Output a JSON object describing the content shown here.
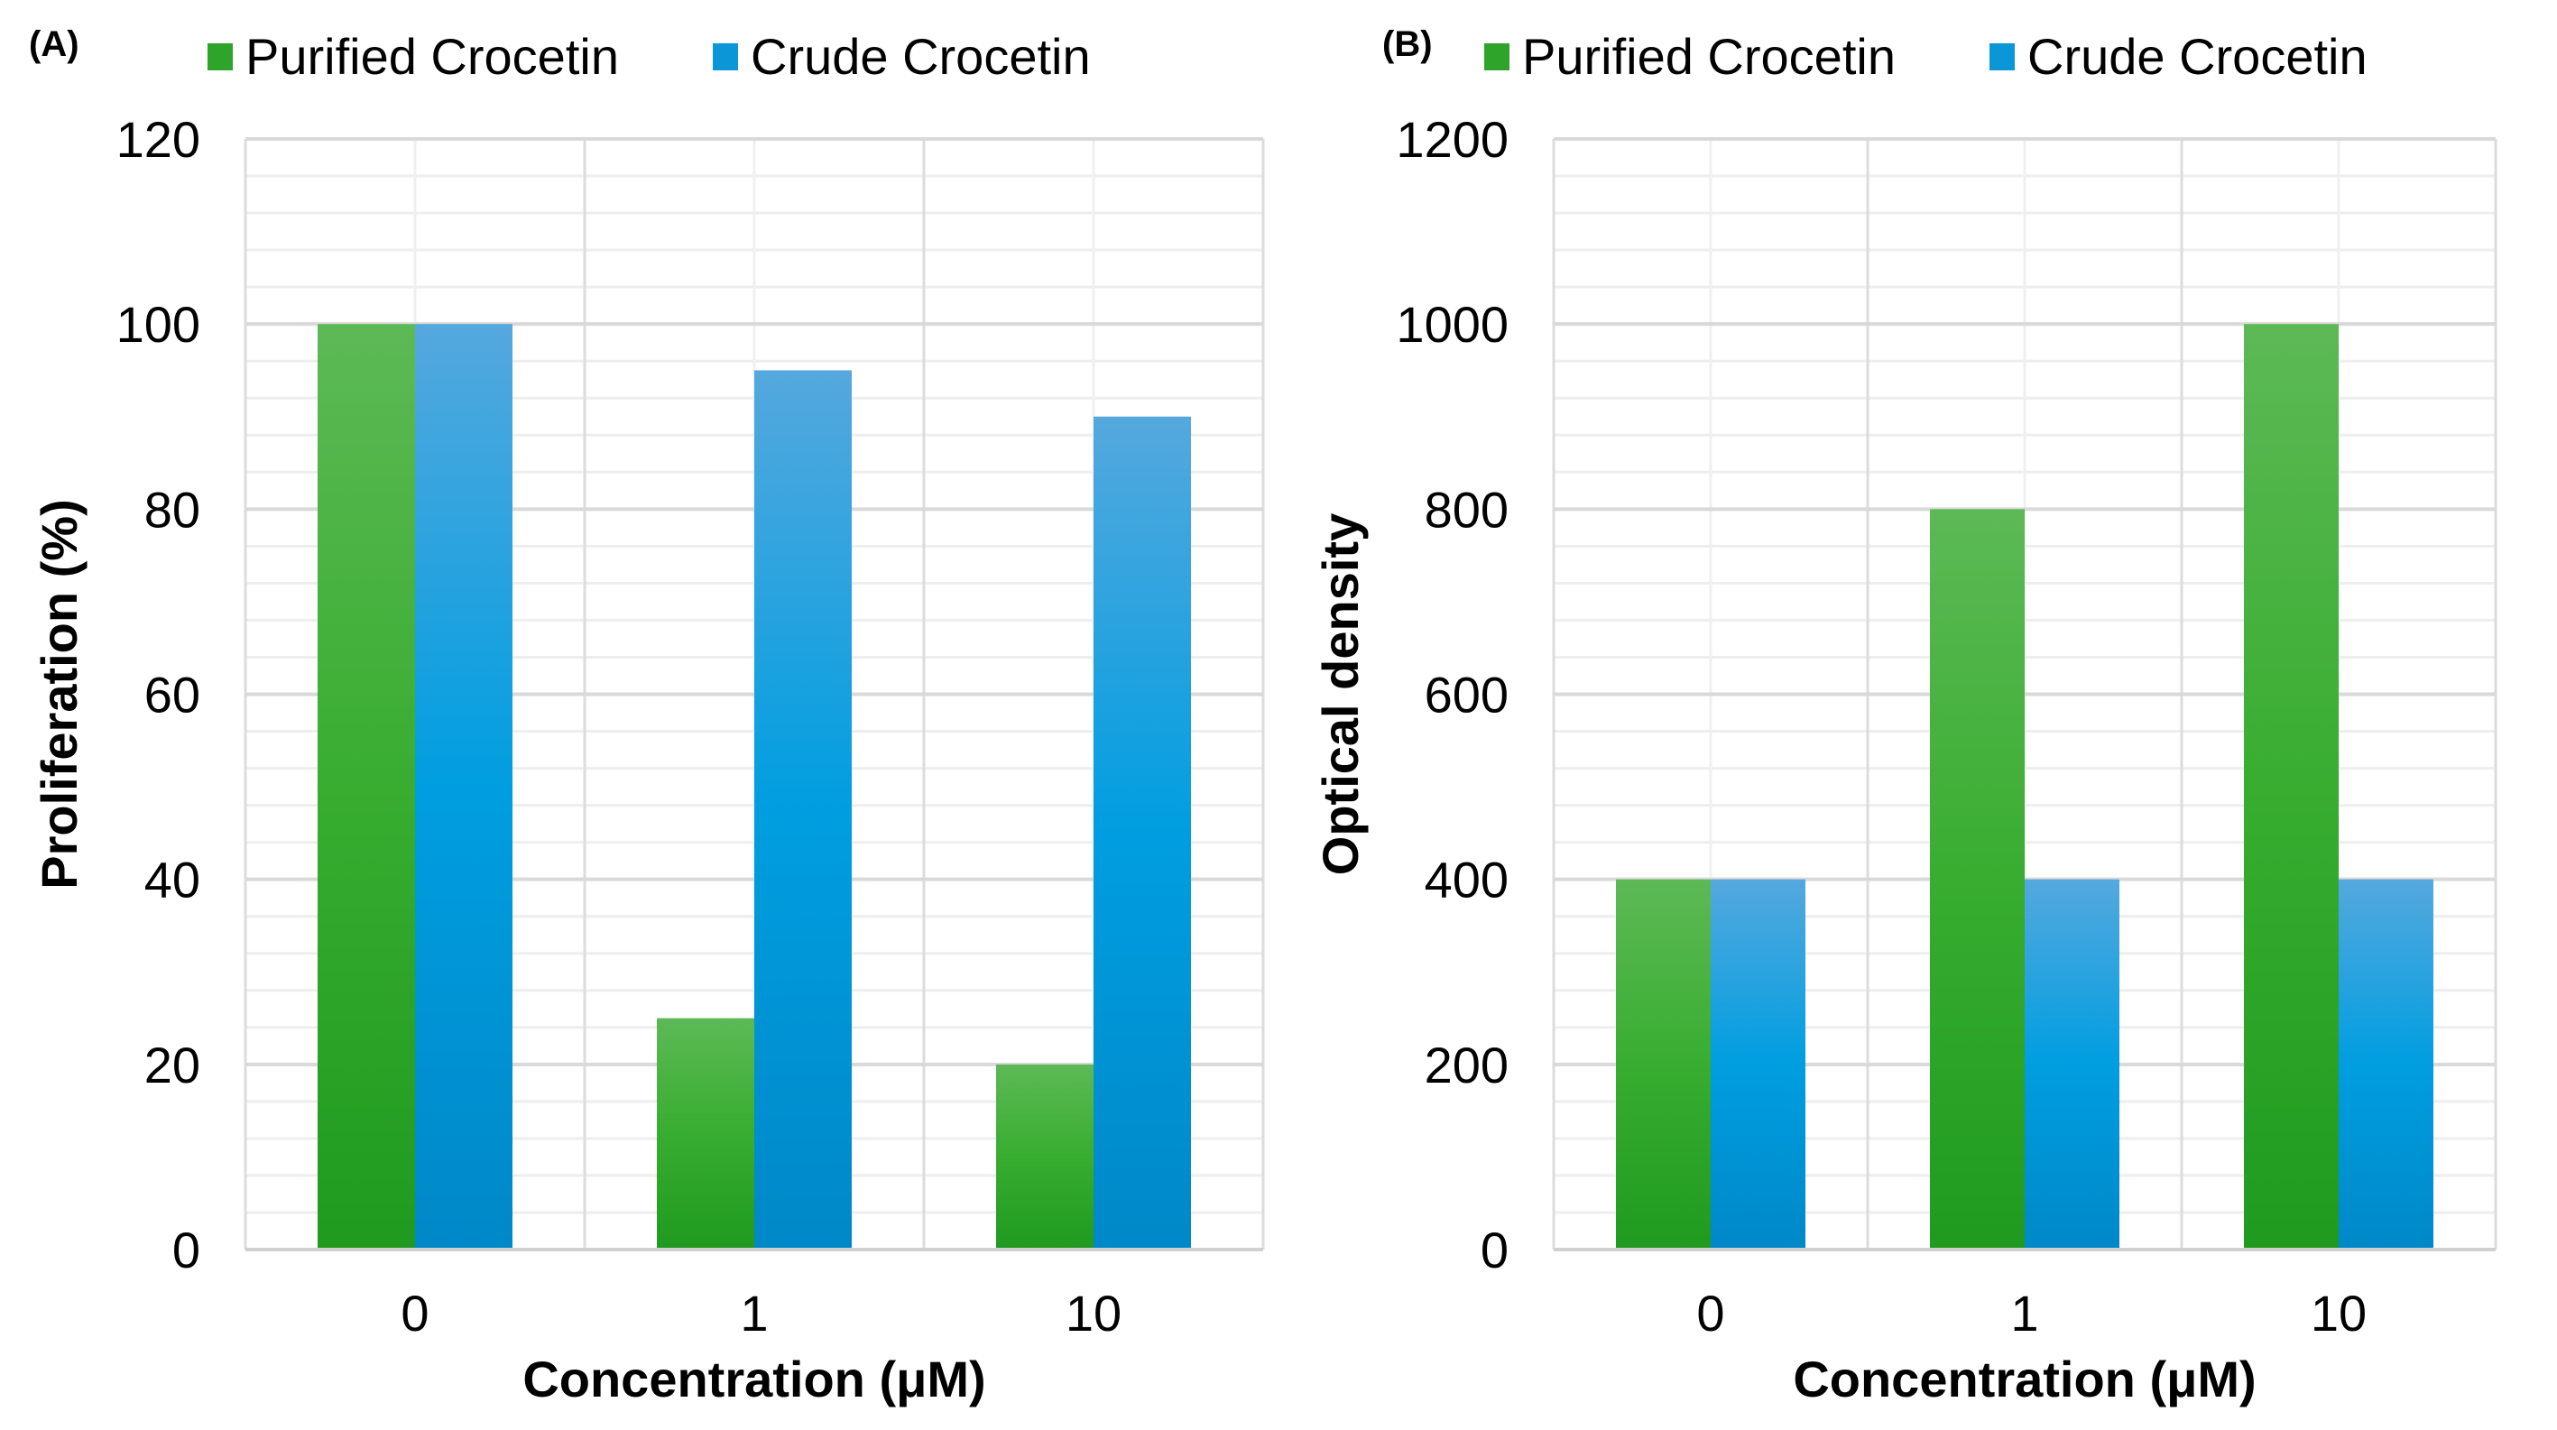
{
  "colors": {
    "purified": "#2ea52a",
    "crude": "#0b96d8",
    "grid": "#e3e3e3"
  },
  "chart_data": [
    {
      "panel_label": "(A)",
      "type": "bar",
      "categories": [
        "0",
        "1",
        "10"
      ],
      "series": [
        {
          "name": "Purified Crocetin",
          "values": [
            100,
            25,
            20
          ]
        },
        {
          "name": "Crude Crocetin",
          "values": [
            100,
            95,
            90
          ]
        }
      ],
      "xlabel": "Concentration (μM)",
      "ylabel": "Proliferation (%)",
      "ylim": [
        0,
        120
      ],
      "yticks": [
        "0",
        "20",
        "40",
        "60",
        "80",
        "100",
        "120"
      ],
      "minor_step": 4,
      "legend": "top",
      "grid": true
    },
    {
      "panel_label": "(B)",
      "type": "bar",
      "categories": [
        "0",
        "1",
        "10"
      ],
      "series": [
        {
          "name": "Purified Crocetin",
          "values": [
            400,
            800,
            1000
          ]
        },
        {
          "name": "Crude Crocetin",
          "values": [
            400,
            400,
            400
          ]
        }
      ],
      "xlabel": "Concentration (μM)",
      "ylabel": "Optical density",
      "ylim": [
        0,
        1200
      ],
      "yticks": [
        "0",
        "200",
        "400",
        "600",
        "800",
        "1000",
        "1200"
      ],
      "minor_step": 40,
      "legend": "top",
      "grid": true
    }
  ]
}
